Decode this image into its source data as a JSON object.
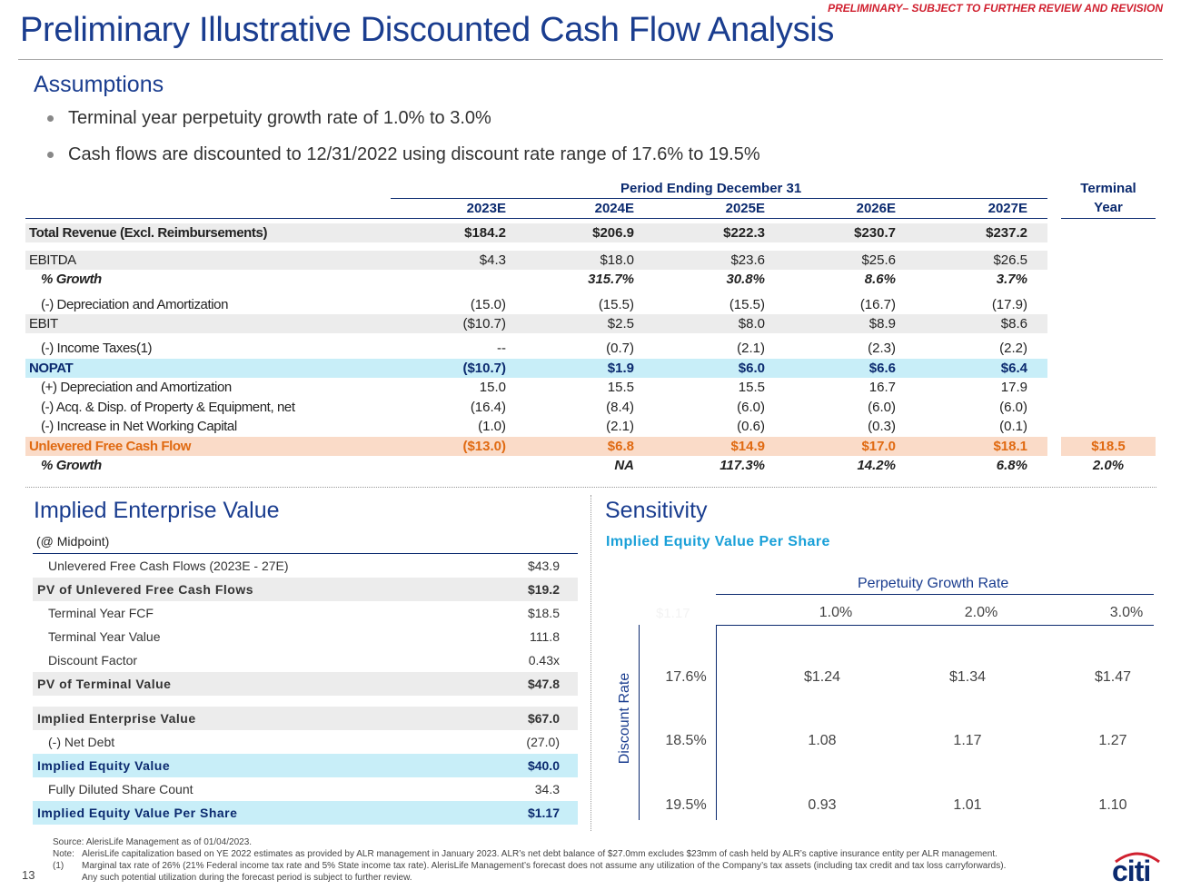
{
  "header": {
    "banner": "PRELIMINARY– SUBJECT TO FURTHER REVIEW AND REVISION",
    "title": "Preliminary Illustrative Discounted Cash Flow Analysis"
  },
  "assumptions": {
    "heading": "Assumptions",
    "bullets": [
      "Terminal year perpetuity growth rate of 1.0% to 3.0%",
      "Cash flows are discounted to 12/31/2022 using discount rate range of 17.6% to 19.5%"
    ]
  },
  "dcf": {
    "period_header": "Period Ending December 31",
    "terminal_header_1": "Terminal",
    "terminal_header_2": "Year",
    "years": [
      "2023E",
      "2024E",
      "2025E",
      "2026E",
      "2027E"
    ],
    "rows": [
      {
        "label": "Total Revenue (Excl. Reimbursements)",
        "values": [
          "$184.2",
          "$206.9",
          "$222.3",
          "$230.7",
          "$237.2"
        ],
        "style": "gray",
        "bold": true,
        "terminal": ""
      },
      {
        "label": "EBITDA",
        "values": [
          "$4.3",
          "$18.0",
          "$23.6",
          "$25.6",
          "$26.5"
        ],
        "style": "gray",
        "terminal": ""
      },
      {
        "label": "% Growth",
        "values": [
          "",
          "315.7%",
          "30.8%",
          "8.6%",
          "3.7%"
        ],
        "style": "italic",
        "terminal": ""
      },
      {
        "label": "(-) Depreciation and Amortization",
        "values": [
          "(15.0)",
          "(15.5)",
          "(15.5)",
          "(16.7)",
          "(17.9)"
        ],
        "style": "indent",
        "terminal": ""
      },
      {
        "label": "EBIT",
        "values": [
          "($10.7)",
          "$2.5",
          "$8.0",
          "$8.9",
          "$8.6"
        ],
        "style": "gray",
        "terminal": ""
      },
      {
        "label": "(-) Income Taxes(1)",
        "values": [
          "--",
          "(0.7)",
          "(2.1)",
          "(2.3)",
          "(2.2)"
        ],
        "style": "indent",
        "terminal": ""
      },
      {
        "label": "NOPAT",
        "values": [
          "($10.7)",
          "$1.9",
          "$6.0",
          "$6.6",
          "$6.4"
        ],
        "style": "blue",
        "terminal": ""
      },
      {
        "label": "(+) Depreciation and Amortization",
        "values": [
          "15.0",
          "15.5",
          "15.5",
          "16.7",
          "17.9"
        ],
        "style": "indent",
        "terminal": ""
      },
      {
        "label": "(-) Acq. & Disp. of Property & Equipment, net",
        "values": [
          "(16.4)",
          "(8.4)",
          "(6.0)",
          "(6.0)",
          "(6.0)"
        ],
        "style": "indent",
        "terminal": ""
      },
      {
        "label": "(-) Increase in Net Working Capital",
        "values": [
          "(1.0)",
          "(2.1)",
          "(0.6)",
          "(0.3)",
          "(0.1)"
        ],
        "style": "indent",
        "terminal": ""
      },
      {
        "label": "Unlevered Free Cash Flow",
        "values": [
          "($13.0)",
          "$6.8",
          "$14.9",
          "$17.0",
          "$18.1"
        ],
        "style": "orange",
        "terminal": "$18.5"
      },
      {
        "label": "% Growth",
        "values": [
          "",
          "NA",
          "117.3%",
          "14.2%",
          "6.8%"
        ],
        "style": "italic",
        "terminal": "2.0%"
      }
    ]
  },
  "ev": {
    "heading": "Implied Enterprise Value",
    "subheading": "(@ Midpoint)",
    "rows": [
      {
        "label": "Unlevered Free Cash Flows (2023E - 27E)",
        "value": "$43.9",
        "style": "indent"
      },
      {
        "label": "PV of Unlevered Free Cash Flows",
        "value": "$19.2",
        "style": "gray"
      },
      {
        "label": "Terminal Year FCF",
        "value": "$18.5",
        "style": "indent"
      },
      {
        "label": "Terminal Year Value",
        "value": "111.8",
        "style": "indent"
      },
      {
        "label": "Discount Factor",
        "value": "0.43x",
        "style": "indent"
      },
      {
        "label": "PV of Terminal Value",
        "value": "$47.8",
        "style": "gray"
      },
      {
        "label": "Implied Enterprise Value",
        "value": "$67.0",
        "style": "gray"
      },
      {
        "label": "(-) Net Debt",
        "value": "(27.0)",
        "style": "indent"
      },
      {
        "label": "Implied Equity Value",
        "value": "$40.0",
        "style": "blue"
      },
      {
        "label": "Fully Diluted Share Count",
        "value": "34.3",
        "style": "indent"
      },
      {
        "label": "Implied Equity Value Per Share",
        "value": "$1.17",
        "style": "blue"
      }
    ]
  },
  "sensitivity": {
    "heading": "Sensitivity",
    "subheading": "Implied Equity Value Per Share",
    "col_header": "Perpetuity Growth Rate",
    "row_header": "Discount Rate",
    "corner": "$1.17",
    "growth_rates": [
      "1.0%",
      "2.0%",
      "3.0%"
    ],
    "discount_rates": [
      "17.6%",
      "18.5%",
      "19.5%"
    ],
    "values": [
      [
        "$1.24",
        "$1.34",
        "$1.47"
      ],
      [
        "1.08",
        "1.17",
        "1.27"
      ],
      [
        "0.93",
        "1.01",
        "1.10"
      ]
    ]
  },
  "footer": {
    "page": "13",
    "source": "Source: AlerisLife Management as of 01/04/2023.",
    "note_label": "Note:",
    "note": "AlerisLife capitalization based on YE 2022 estimates as provided by ALR management in January 2023. ALR’s net debt balance of $27.0mm excludes $23mm of cash held by ALR’s captive insurance entity per ALR management.",
    "fn_label": "(1)",
    "fn1": "Marginal tax rate of 26% (21% Federal income tax rate and 5% State income tax rate). AlerisLife Management’s forecast does not assume any utilization of the Company’s tax assets (including tax credit and tax loss carryforwards).",
    "fn2": "Any such potential utilization during the forecast period is subject to further review.",
    "logo": "citi"
  }
}
